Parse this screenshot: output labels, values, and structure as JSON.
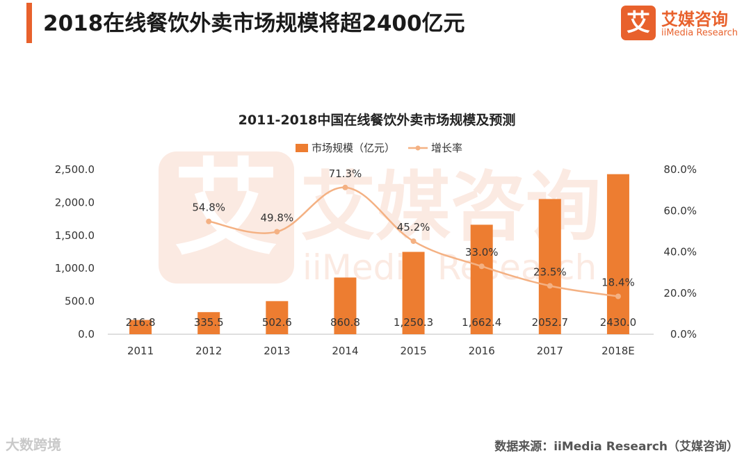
{
  "header": {
    "title": "2018在线餐饮外卖市场规模将超2400亿元",
    "brand_mark": "艾",
    "brand_name": "艾媒咨询",
    "brand_sub": "iiMedia Research"
  },
  "footer": {
    "corner_watermark": "大数跨境",
    "source": "数据来源：iiMedia Research（艾媒咨询）"
  },
  "watermark": {
    "mark": "艾",
    "name": "艾媒咨询",
    "sub": "iiMedia Research"
  },
  "colors": {
    "accent": "#e8612c",
    "bar": "#ed7d31",
    "line": "#f4b183"
  },
  "chart_data": {
    "type": "bar",
    "title": "2011-2018中国在线餐饮外卖市场规模及预测",
    "categories": [
      "2011",
      "2012",
      "2013",
      "2014",
      "2015",
      "2016",
      "2017",
      "2018E"
    ],
    "series": [
      {
        "name": "市场规模（亿元）",
        "type": "bar",
        "axis": "left",
        "values": [
          216.8,
          335.5,
          502.6,
          860.8,
          1250.3,
          1662.4,
          2052.7,
          2430.0
        ],
        "labels": [
          "216.8",
          "335.5",
          "502.6",
          "860.8",
          "1,250.3",
          "1,662.4",
          "2052.7",
          "2430.0"
        ]
      },
      {
        "name": "增长率",
        "type": "line",
        "axis": "right",
        "values": [
          null,
          54.8,
          49.8,
          71.3,
          45.2,
          33.0,
          23.5,
          18.4
        ],
        "labels": [
          "",
          "54.8%",
          "49.8%",
          "71.3%",
          "45.2%",
          "33.0%",
          "23.5%",
          "18.4%"
        ]
      }
    ],
    "y_left": {
      "range": [
        0,
        2500
      ],
      "ticks": [
        "0.0",
        "500.0",
        "1,000.0",
        "1,500.0",
        "2,000.0",
        "2,500.0"
      ]
    },
    "y_right": {
      "range": [
        0,
        80
      ],
      "ticks": [
        "0.0%",
        "20.0%",
        "40.0%",
        "60.0%",
        "80.0%"
      ]
    },
    "legend": "top-center",
    "grid": false
  }
}
